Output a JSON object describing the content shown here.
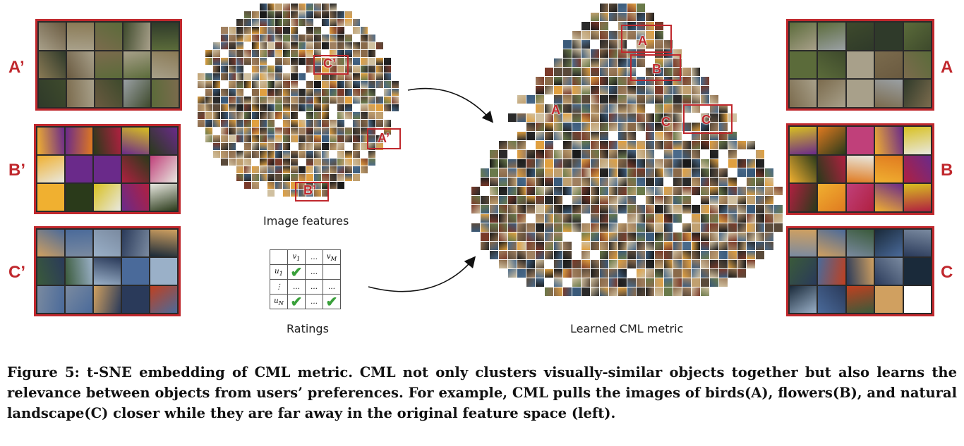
{
  "left_groups": [
    {
      "label": "A’"
    },
    {
      "label": "B’"
    },
    {
      "label": "C’"
    }
  ],
  "right_groups": [
    {
      "label": "A"
    },
    {
      "label": "B"
    },
    {
      "label": "C"
    }
  ],
  "left_cloud": {
    "caption": "Image features",
    "marks": [
      "C’",
      "A’",
      "B’"
    ]
  },
  "right_cloud": {
    "caption": "Learned CML metric",
    "marks": [
      "A",
      "B",
      "C",
      "A",
      "C"
    ]
  },
  "ratings": {
    "caption": "Ratings",
    "col1": "v",
    "col1_sub": "1",
    "col_dots": "…",
    "colM": "v",
    "colM_sub": "M",
    "row1": "u",
    "row1_sub": "1",
    "row_dots": "⋮",
    "rowN": "u",
    "rowN_sub": "N",
    "dots": "…",
    "check": "✔"
  },
  "figure_caption": {
    "prefix": "Figure 5: t-SNE embedding of CML metric.",
    "body": "CML not only clusters visually-similar objects together but also learns the relevance between objects from users’ preferences. For example, CML pulls the images of birds(A), flowers(B), and natural landscape(C) closer while they are far away in the original feature space (left)."
  },
  "colors": {
    "accent_red": "#c0282d",
    "check_green": "#39a03a"
  }
}
